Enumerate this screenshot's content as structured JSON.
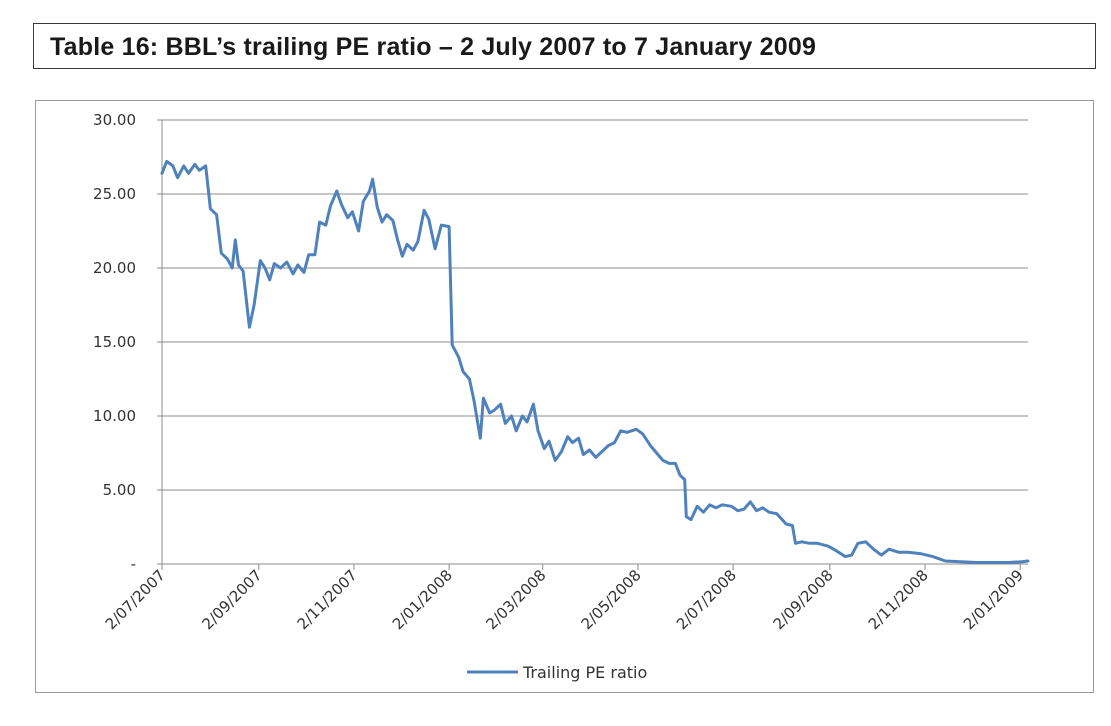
{
  "title": "Table 16: BBL’s trailing PE ratio – 2 July 2007 to 7 January 2009",
  "chart_data": {
    "type": "line",
    "title": "",
    "xlabel": "",
    "ylabel": "",
    "ylim": [
      0,
      30
    ],
    "xlim": [
      "2007-07-02",
      "2009-01-07"
    ],
    "y_tick_labels": [
      "-",
      "5.00",
      "10.00",
      "15.00",
      "20.00",
      "25.00",
      "30.00"
    ],
    "x_tick_labels": [
      "2/07/2007",
      "2/09/2007",
      "2/11/2007",
      "2/01/2008",
      "2/03/2008",
      "2/05/2008",
      "2/07/2008",
      "2/09/2008",
      "2/11/2008",
      "2/01/2009"
    ],
    "grid": true,
    "legend_position": "bottom",
    "line_color": "#4f81bd",
    "series": [
      {
        "name": "Trailing PE ratio",
        "points": [
          [
            "2007-07-02",
            26.4
          ],
          [
            "2007-07-05",
            27.2
          ],
          [
            "2007-07-09",
            26.9
          ],
          [
            "2007-07-12",
            26.1
          ],
          [
            "2007-07-16",
            26.9
          ],
          [
            "2007-07-19",
            26.4
          ],
          [
            "2007-07-23",
            27.0
          ],
          [
            "2007-07-26",
            26.6
          ],
          [
            "2007-07-30",
            26.9
          ],
          [
            "2007-08-02",
            24.0
          ],
          [
            "2007-08-06",
            23.6
          ],
          [
            "2007-08-09",
            21.0
          ],
          [
            "2007-08-13",
            20.6
          ],
          [
            "2007-08-16",
            20.0
          ],
          [
            "2007-08-18",
            21.9
          ],
          [
            "2007-08-20",
            20.2
          ],
          [
            "2007-08-23",
            19.8
          ],
          [
            "2007-08-27",
            16.0
          ],
          [
            "2007-08-30",
            17.5
          ],
          [
            "2007-09-03",
            20.5
          ],
          [
            "2007-09-06",
            20.0
          ],
          [
            "2007-09-09",
            19.2
          ],
          [
            "2007-09-12",
            20.3
          ],
          [
            "2007-09-16",
            20.0
          ],
          [
            "2007-09-20",
            20.4
          ],
          [
            "2007-09-24",
            19.6
          ],
          [
            "2007-09-27",
            20.2
          ],
          [
            "2007-10-01",
            19.7
          ],
          [
            "2007-10-04",
            20.9
          ],
          [
            "2007-10-08",
            20.9
          ],
          [
            "2007-10-11",
            23.1
          ],
          [
            "2007-10-15",
            22.9
          ],
          [
            "2007-10-18",
            24.2
          ],
          [
            "2007-10-22",
            25.2
          ],
          [
            "2007-10-25",
            24.3
          ],
          [
            "2007-10-29",
            23.4
          ],
          [
            "2007-11-01",
            23.8
          ],
          [
            "2007-11-05",
            22.5
          ],
          [
            "2007-11-08",
            24.5
          ],
          [
            "2007-11-12",
            25.2
          ],
          [
            "2007-11-14",
            26.0
          ],
          [
            "2007-11-17",
            24.1
          ],
          [
            "2007-11-20",
            23.1
          ],
          [
            "2007-11-23",
            23.6
          ],
          [
            "2007-11-27",
            23.2
          ],
          [
            "2007-11-30",
            21.9
          ],
          [
            "2007-12-03",
            20.8
          ],
          [
            "2007-12-06",
            21.6
          ],
          [
            "2007-12-10",
            21.2
          ],
          [
            "2007-12-13",
            21.8
          ],
          [
            "2007-12-17",
            23.9
          ],
          [
            "2007-12-20",
            23.3
          ],
          [
            "2007-12-24",
            21.3
          ],
          [
            "2007-12-28",
            22.9
          ],
          [
            "2008-01-02",
            22.8
          ],
          [
            "2008-01-04",
            14.8
          ],
          [
            "2008-01-08",
            14.0
          ],
          [
            "2008-01-11",
            13.0
          ],
          [
            "2008-01-15",
            12.5
          ],
          [
            "2008-01-18",
            11.0
          ],
          [
            "2008-01-22",
            8.5
          ],
          [
            "2008-01-24",
            11.2
          ],
          [
            "2008-01-28",
            10.2
          ],
          [
            "2008-01-31",
            10.4
          ],
          [
            "2008-02-04",
            10.8
          ],
          [
            "2008-02-07",
            9.5
          ],
          [
            "2008-02-11",
            10.0
          ],
          [
            "2008-02-14",
            9.0
          ],
          [
            "2008-02-18",
            10.0
          ],
          [
            "2008-02-21",
            9.6
          ],
          [
            "2008-02-25",
            10.8
          ],
          [
            "2008-02-28",
            9.0
          ],
          [
            "2008-03-03",
            7.8
          ],
          [
            "2008-03-06",
            8.3
          ],
          [
            "2008-03-10",
            7.0
          ],
          [
            "2008-03-14",
            7.6
          ],
          [
            "2008-03-18",
            8.6
          ],
          [
            "2008-03-21",
            8.2
          ],
          [
            "2008-03-25",
            8.5
          ],
          [
            "2008-03-28",
            7.4
          ],
          [
            "2008-04-01",
            7.7
          ],
          [
            "2008-04-05",
            7.2
          ],
          [
            "2008-04-09",
            7.6
          ],
          [
            "2008-04-13",
            8.0
          ],
          [
            "2008-04-17",
            8.2
          ],
          [
            "2008-04-21",
            9.0
          ],
          [
            "2008-04-25",
            8.9
          ],
          [
            "2008-05-01",
            9.1
          ],
          [
            "2008-05-05",
            8.8
          ],
          [
            "2008-05-10",
            8.0
          ],
          [
            "2008-05-14",
            7.5
          ],
          [
            "2008-05-18",
            7.0
          ],
          [
            "2008-05-22",
            6.8
          ],
          [
            "2008-05-26",
            6.8
          ],
          [
            "2008-05-29",
            6.0
          ],
          [
            "2008-06-01",
            5.7
          ],
          [
            "2008-06-02",
            3.2
          ],
          [
            "2008-06-05",
            3.0
          ],
          [
            "2008-06-09",
            3.9
          ],
          [
            "2008-06-13",
            3.5
          ],
          [
            "2008-06-17",
            4.0
          ],
          [
            "2008-06-21",
            3.8
          ],
          [
            "2008-06-25",
            4.0
          ],
          [
            "2008-07-01",
            3.9
          ],
          [
            "2008-07-05",
            3.6
          ],
          [
            "2008-07-09",
            3.7
          ],
          [
            "2008-07-13",
            4.2
          ],
          [
            "2008-07-17",
            3.6
          ],
          [
            "2008-07-21",
            3.8
          ],
          [
            "2008-07-25",
            3.5
          ],
          [
            "2008-07-30",
            3.4
          ],
          [
            "2008-08-05",
            2.7
          ],
          [
            "2008-08-09",
            2.6
          ],
          [
            "2008-08-11",
            1.4
          ],
          [
            "2008-08-15",
            1.5
          ],
          [
            "2008-08-20",
            1.4
          ],
          [
            "2008-08-25",
            1.4
          ],
          [
            "2008-09-01",
            1.2
          ],
          [
            "2008-09-06",
            0.9
          ],
          [
            "2008-09-12",
            0.5
          ],
          [
            "2008-09-16",
            0.6
          ],
          [
            "2008-09-20",
            1.4
          ],
          [
            "2008-09-25",
            1.5
          ],
          [
            "2008-09-30",
            1.0
          ],
          [
            "2008-10-05",
            0.6
          ],
          [
            "2008-10-10",
            1.0
          ],
          [
            "2008-10-16",
            0.8
          ],
          [
            "2008-10-22",
            0.8
          ],
          [
            "2008-10-30",
            0.7
          ],
          [
            "2008-11-07",
            0.5
          ],
          [
            "2008-11-15",
            0.2
          ],
          [
            "2008-11-25",
            0.15
          ],
          [
            "2008-12-05",
            0.1
          ],
          [
            "2008-12-15",
            0.1
          ],
          [
            "2008-12-25",
            0.1
          ],
          [
            "2009-01-03",
            0.15
          ],
          [
            "2009-01-07",
            0.2
          ]
        ]
      }
    ]
  }
}
